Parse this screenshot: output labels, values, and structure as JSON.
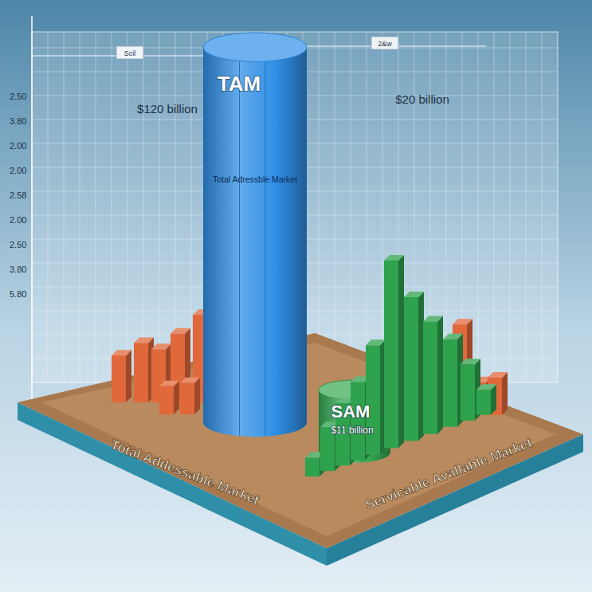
{
  "chart_data": {
    "type": "bar",
    "categories": [
      "TAM",
      "SAM"
    ],
    "values": [
      120,
      20
    ],
    "value_labels": [
      "$120 billion",
      "$20 billion"
    ],
    "colors": [
      "#2f8fe6",
      "#35a852"
    ],
    "ylim": [
      0,
      130
    ],
    "tick_labels": false,
    "data_labels": true,
    "annotations": [
      "Total Adressble Market",
      "$11 billion",
      "Total Addessable Market",
      "Servicable Avallable Market"
    ],
    "side_labels": [
      "2.50",
      "3.80",
      "2.00",
      "2.00",
      "2.58",
      "2.00",
      "2.50",
      "3.80",
      "5.80"
    ],
    "top_labels": [
      "Scil",
      "2&w"
    ],
    "left_bars": {
      "color": "#e0683a",
      "values": [
        15,
        19,
        17,
        22,
        28,
        10,
        9
      ]
    },
    "right_bars": {
      "color": "#2fa24e",
      "values": [
        6,
        14,
        20,
        25,
        35,
        60,
        46,
        36,
        28,
        18,
        8
      ]
    },
    "right_back_bars": {
      "color": "#e0683a",
      "values": [
        22,
        28,
        10,
        12
      ]
    }
  }
}
